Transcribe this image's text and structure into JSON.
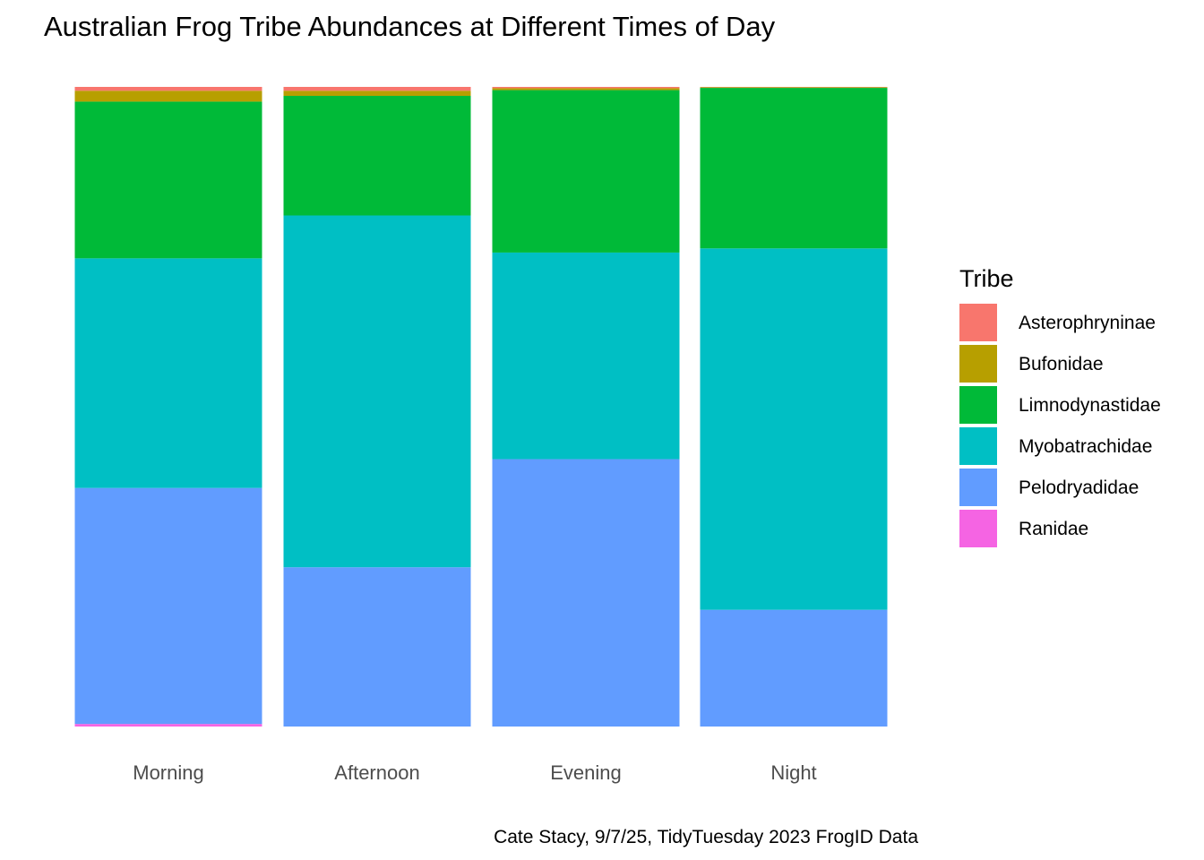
{
  "chart_data": {
    "type": "bar",
    "stacked": true,
    "normalized": true,
    "title": "Australian Frog Tribe Abundances at Different Times of Day",
    "xlabel": "",
    "ylabel": "",
    "categories": [
      "Morning",
      "Afternoon",
      "Evening",
      "Night"
    ],
    "ylim": [
      0,
      1
    ],
    "grid": false,
    "legend": {
      "title": "Tribe",
      "position": "right"
    },
    "caption": "Cate Stacy, 9/7/25, TidyTuesday 2023 FrogID Data",
    "series": [
      {
        "name": "Asterophryninae",
        "color": "#F8766D",
        "values": [
          0.006,
          0.006,
          0.002,
          0.0005
        ]
      },
      {
        "name": "Bufonidae",
        "color": "#B79F00",
        "values": [
          0.017,
          0.008,
          0.003,
          0.001
        ]
      },
      {
        "name": "Limnodynastidae",
        "color": "#00BA38",
        "values": [
          0.245,
          0.187,
          0.254,
          0.251
        ]
      },
      {
        "name": "Myobatrachidae",
        "color": "#00BFC4",
        "values": [
          0.359,
          0.55,
          0.323,
          0.565
        ]
      },
      {
        "name": "Pelodryadidae",
        "color": "#619CFF",
        "values": [
          0.369,
          0.249,
          0.418,
          0.1825
        ]
      },
      {
        "name": "Ranidae",
        "color": "#F564E3",
        "values": [
          0.004,
          0.0,
          0.0,
          0.0
        ]
      }
    ]
  }
}
